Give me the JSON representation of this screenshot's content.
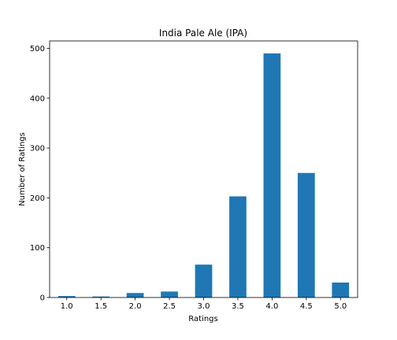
{
  "chart_data": {
    "type": "bar",
    "title": "India Pale Ale (IPA)",
    "xlabel": "Ratings",
    "ylabel": "Number of Ratings",
    "categories": [
      "1.0",
      "1.5",
      "2.0",
      "2.5",
      "3.0",
      "3.5",
      "4.0",
      "4.5",
      "5.0"
    ],
    "values": [
      3,
      2,
      9,
      12,
      66,
      203,
      490,
      250,
      30
    ],
    "ylim": [
      0,
      515
    ],
    "yticks": [
      "0",
      "100",
      "200",
      "300",
      "400",
      "500"
    ],
    "grid": false,
    "legend": "none",
    "bar_color": "#1f77b4"
  }
}
